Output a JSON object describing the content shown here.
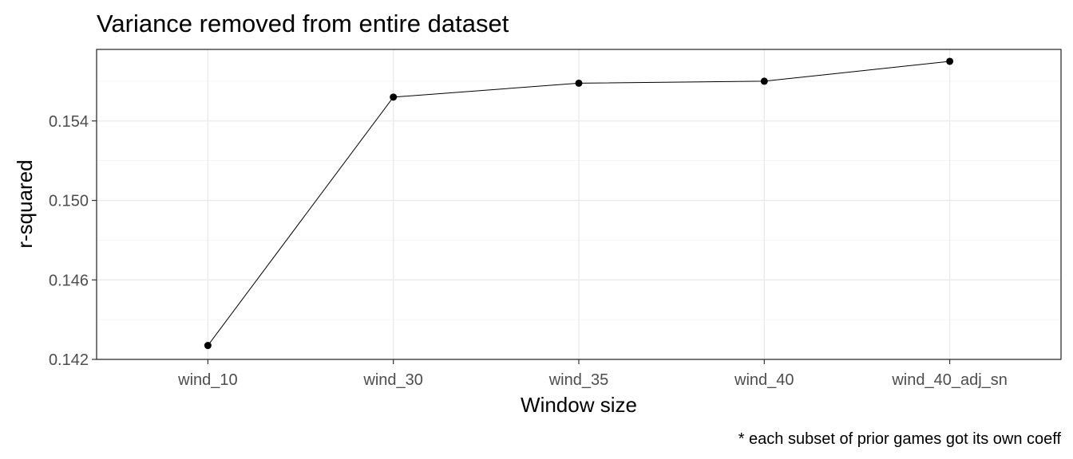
{
  "chart_data": {
    "type": "line",
    "title": "Variance removed from entire dataset",
    "xlabel": "Window size",
    "ylabel": "r-squared",
    "caption": "* each subset of prior games got its own coeff",
    "categories": [
      "wind_10",
      "wind_30",
      "wind_35",
      "wind_40",
      "wind_40_adj_sn"
    ],
    "values": [
      0.1427,
      0.1552,
      0.1559,
      0.156,
      0.157
    ],
    "ylim": [
      0.142,
      0.1576
    ],
    "yticks": [
      0.142,
      0.146,
      0.15,
      0.154
    ],
    "ytick_labels": [
      "0.142",
      "0.146",
      "0.150",
      "0.154"
    ],
    "grid": true,
    "colors": {
      "line": "#000000",
      "point": "#000000",
      "grid": "#ebebeb",
      "border": "#333333"
    }
  }
}
